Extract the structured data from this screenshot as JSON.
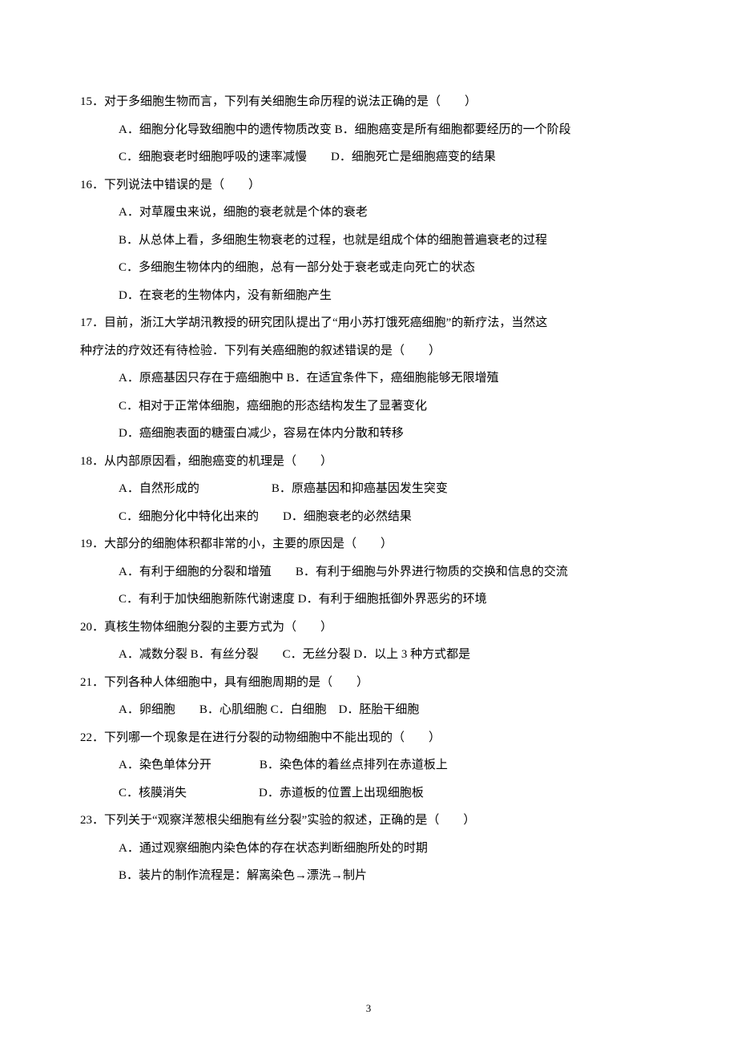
{
  "page_number": "3",
  "text_color": "#000000",
  "bg_color": "#ffffff",
  "font_size_pt": 11,
  "line_height": 2.3,
  "questions": [
    {
      "num": "15",
      "stem": "．对于多细胞生物而言，下列有关细胞生命历程的说法正确的是（　　）",
      "opts": [
        "A．细胞分化导致细胞中的遗传物质改变  B．细胞癌变是所有细胞都要经历的一个阶段",
        "C．细胞衰老时细胞呼吸的速率减慢　　D．细胞死亡是细胞癌变的结果"
      ]
    },
    {
      "num": "16",
      "stem": "．下列说法中错误的是（　　）",
      "opts": [
        "A．对草履虫来说，细胞的衰老就是个体的衰老",
        "B．从总体上看，多细胞生物衰老的过程，也就是组成个体的细胞普遍衰老的过程",
        "C．多细胞生物体内的细胞，总有一部分处于衰老或走向死亡的状态",
        "D．在衰老的生物体内，没有新细胞产生"
      ]
    },
    {
      "num": "17",
      "stem": "．目前，浙江大学胡汛教授的研究团队提出了“用小苏打饿死癌细胞”的新疗法，当然这",
      "stem2": "种疗法的疗效还有待检验．下列有关癌细胞的叙述错误的是（　　）",
      "opts": [
        "A．原癌基因只存在于癌细胞中",
        "B．在适宜条件下，癌细胞能够无限增殖",
        "C．相对于正常体细胞，癌细胞的形态结构发生了显著变化",
        "D．癌细胞表面的糖蛋白减少，容易在体内分散和转移"
      ]
    },
    {
      "num": "18",
      "stem": "．从内部原因看，细胞癌变的机理是（　　）",
      "opts": [
        "A．自然形成的　　　　　　B．原癌基因和抑癌基因发生突变",
        "C．细胞分化中特化出来的　　D．细胞衰老的必然结果"
      ]
    },
    {
      "num": "19",
      "stem": "．大部分的细胞体积都非常的小，主要的原因是（　　）",
      "opts": [
        "A．有利于细胞的分裂和增殖　　B．有利于细胞与外界进行物质的交换和信息的交流",
        "C．有利于加快细胞新陈代谢速度  D．有利于细胞抵御外界恶劣的环境"
      ]
    },
    {
      "num": "20",
      "stem": "．真核生物体细胞分裂的主要方式为（　　）",
      "opts": [
        "A．减数分裂  B．有丝分裂　　C．无丝分裂  D．以上 3 种方式都是"
      ]
    },
    {
      "num": "21",
      "stem": "．下列各种人体细胞中，具有细胞周期的是（　　）",
      "opts": [
        "A．卵细胞　　B．心肌细胞 C．白细胞　D．胚胎干细胞"
      ]
    },
    {
      "num": "22",
      "stem": "．下列哪一个现象是在进行分裂的动物细胞中不能出现的（　　）",
      "opts": [
        "A．染色单体分开　　　　B．染色体的着丝点排列在赤道板上",
        "C．核膜消失　　　　　　D．赤道板的位置上出现细胞板"
      ]
    },
    {
      "num": "23",
      "stem": "．下列关于“观察洋葱根尖细胞有丝分裂”实验的叙述，正确的是（　　）",
      "opts": [
        "A．通过观察细胞内染色体的存在状态判断细胞所处的时期",
        "B．装片的制作流程是：解离染色→漂洗→制片"
      ]
    }
  ]
}
